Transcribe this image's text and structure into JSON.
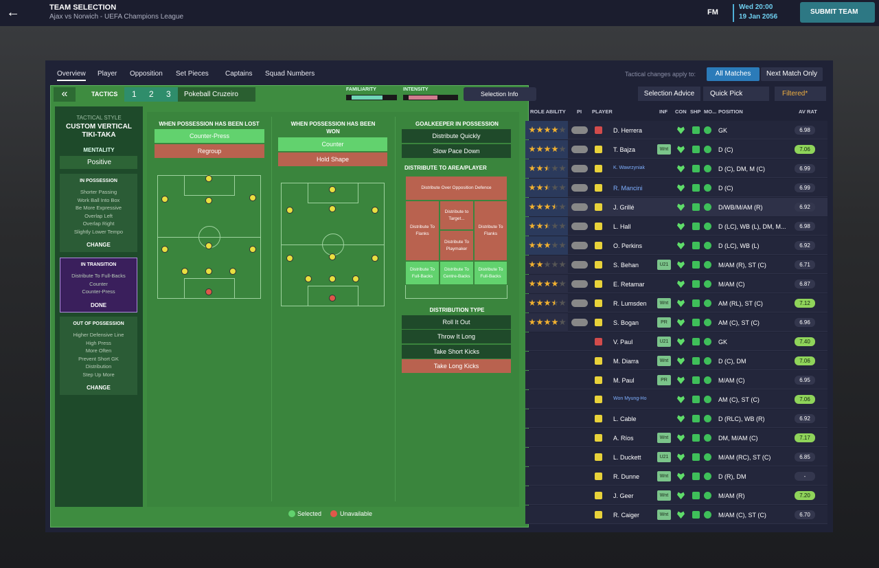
{
  "header": {
    "title": "TEAM SELECTION",
    "subtitle": "Ajax vs Norwich - UEFA Champions League",
    "logo": "FM",
    "time": "Wed 20:00",
    "date": "19 Jan 2056",
    "submit": "SUBMIT TEAM"
  },
  "tabs": [
    "Overview",
    "Player",
    "Opposition",
    "Set Pieces",
    "Captains",
    "Squad Numbers"
  ],
  "tactical_changes": {
    "label": "Tactical changes apply to:",
    "options": [
      "All Matches",
      "Next Match Only"
    ]
  },
  "tactics_bar": {
    "button": "TACTICS",
    "slots": [
      "1",
      "2",
      "3"
    ],
    "name": "Pokeball Cruzeiro",
    "familiarity": "FAMILIARITY",
    "intensity": "INTENSITY"
  },
  "toolbar": {
    "selection_info": "Selection Info",
    "selection_advice": "Selection Advice",
    "quick_pick": "Quick Pick",
    "filter": "Filtered*"
  },
  "sidebar": {
    "style_label": "TACTICAL STYLE",
    "style_lines": [
      "CUSTOM VERTICAL",
      "TIKI-TAKA"
    ],
    "mentality_label": "MENTALITY",
    "mentality": "Positive",
    "phases": [
      {
        "title": "IN POSSESSION",
        "items": [
          "Shorter Passing",
          "Work Ball Into Box",
          "Be More Expressive",
          "Overlap Left",
          "Overlap Right",
          "Slightly Lower Tempo"
        ],
        "action": "CHANGE"
      },
      {
        "title": "IN TRANSITION",
        "items": [
          "Distribute To Full-Backs",
          "Counter",
          "Counter-Press"
        ],
        "action": "DONE"
      },
      {
        "title": "OUT OF POSSESSION",
        "items": [
          "Higher Defensive Line",
          "High Press",
          "More Often",
          "Prevent Short GK",
          "Distribution",
          "Step Up More"
        ],
        "action": "CHANGE"
      }
    ]
  },
  "transition": {
    "lost": {
      "title": "WHEN POSSESSION HAS BEEN LOST",
      "options": [
        "Counter-Press",
        "Regroup"
      ]
    },
    "won": {
      "title_lines": [
        "WHEN POSSESSION HAS BEEN",
        "WON"
      ],
      "options": [
        "Counter",
        "Hold Shape"
      ]
    },
    "gk": {
      "title": "GOALKEEPER IN POSSESSION",
      "options": [
        "Distribute Quickly",
        "Slow Pace Down"
      ]
    },
    "distribute": {
      "title": "DISTRIBUTE TO AREA/PLAYER",
      "areas": [
        [
          "Distribute Over Opposition Defence"
        ],
        [
          "Distribute To",
          "Flanks"
        ],
        [
          "Distribute to",
          "Target..."
        ],
        [
          "Distribute To",
          "Playmaker"
        ],
        [
          "Distribute To",
          "Flanks"
        ],
        [
          "Distribute To",
          "Full-Backs"
        ],
        [
          "Distribute To",
          "Centre-Backs"
        ],
        [
          "Distribute To",
          "Full-Backs"
        ]
      ]
    },
    "distribution_type": {
      "title": "DISTRIBUTION TYPE",
      "options": [
        "Roll It Out",
        "Throw It Long",
        "Take Short Kicks",
        "Take Long Kicks"
      ]
    }
  },
  "legend": [
    "Selected",
    "Unavailable"
  ],
  "table": {
    "headers": [
      "ROLE ABILITY",
      "PI",
      "PLAYER",
      "INF",
      "CON",
      "SHP",
      "MO...",
      "POSITION",
      "AV RAT"
    ],
    "rows": [
      {
        "name": "D. Herrera",
        "position": "GK",
        "rating": "6.98",
        "stars": 4
      },
      {
        "name": "T. Bajza",
        "inf": "Wnt",
        "position": "D (C)",
        "rating": "7.06",
        "stars": 4
      },
      {
        "name": "K. Wawrzyniak",
        "position": "D (C), DM, M (C)",
        "rating": "6.99",
        "stars": 2.5
      },
      {
        "name": "R. Mancini",
        "position": "D (C)",
        "rating": "6.99",
        "stars": 2.5
      },
      {
        "name": "J. Grillé",
        "position": "D/WB/M/AM (R)",
        "rating": "6.92",
        "stars": 3.5
      },
      {
        "name": "L. Hall",
        "position": "D (LC), WB (L), DM, M...",
        "rating": "6.98",
        "stars": 2.5
      },
      {
        "name": "O. Perkins",
        "position": "D (LC), WB (L)",
        "rating": "6.92",
        "stars": 3
      },
      {
        "name": "S. Behan",
        "inf": "U21",
        "position": "M/AM (R), ST (C)",
        "rating": "6.71",
        "stars": 2
      },
      {
        "name": "E. Retamar",
        "position": "M/AM (C)",
        "rating": "6.87",
        "stars": 4
      },
      {
        "name": "R. Lumsden",
        "inf": "Wnt",
        "position": "AM (RL), ST (C)",
        "rating": "7.12",
        "stars": 3.5
      },
      {
        "name": "S. Bogan",
        "inf": "PR",
        "position": "AM (C), ST (C)",
        "rating": "6.96",
        "stars": 4
      },
      {
        "name": "V. Paul",
        "inf": "U21",
        "position": "GK",
        "rating": "7.40"
      },
      {
        "name": "M. Diarra",
        "inf": "Wnt",
        "position": "D (C), DM",
        "rating": "7.06"
      },
      {
        "name": "M. Paul",
        "inf": "PR",
        "position": "M/AM (C)",
        "rating": "6.95"
      },
      {
        "name": "Won Myung-Ho",
        "position": "AM (C), ST (C)",
        "rating": "7.06"
      },
      {
        "name": "L. Cable",
        "position": "D (RLC), WB (R)",
        "rating": "6.92"
      },
      {
        "name": "A. Ríos",
        "inf": "Wnt",
        "position": "DM, M/AM (C)",
        "rating": "7.17"
      },
      {
        "name": "L. Duckett",
        "inf": "U21",
        "position": "M/AM (RC), ST (C)",
        "rating": "6.85"
      },
      {
        "name": "R. Dunne",
        "inf": "Wnt",
        "position": "D (R), DM",
        "rating": "-"
      },
      {
        "name": "J. Geer",
        "inf": "Wnt",
        "position": "M/AM (R)",
        "rating": "7.20"
      },
      {
        "name": "R. Caiger",
        "inf": "Wnt",
        "position": "M/AM (C), ST (C)",
        "rating": "6.70"
      }
    ]
  }
}
